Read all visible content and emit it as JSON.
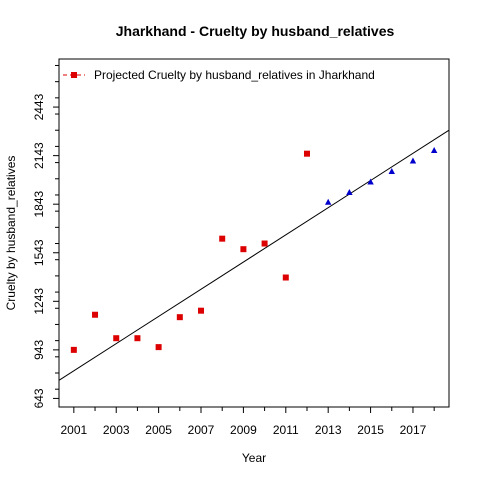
{
  "chart_data": {
    "type": "scatter",
    "title": "Jharkhand  -  Cruelty by husband_relatives",
    "xlabel": "Year",
    "ylabel": "Cruelty by husband_relatives",
    "xlim": [
      2000.3,
      2018.7
    ],
    "ylim": [
      590,
      2740
    ],
    "x_ticks": [
      2001,
      2003,
      2005,
      2007,
      2009,
      2011,
      2013,
      2015,
      2017
    ],
    "x_tick_labels": [
      "2001",
      "2003",
      "2005",
      "2007",
      "2009",
      "2011",
      "2013",
      "2015",
      "2017"
    ],
    "y_ticks": [
      643,
      943,
      1243,
      1543,
      1843,
      2143,
      2443
    ],
    "y_tick_labels": [
      "643",
      "943",
      "1243",
      "1543",
      "1843",
      "2143",
      "2443"
    ],
    "grid": false,
    "legend": {
      "placement": "top-left",
      "entries": [
        "Projected  Cruelty by husband_relatives  in  Jharkhand"
      ]
    },
    "series": [
      {
        "marker": "square",
        "color": "#dd0000",
        "x": [
          2001,
          2002,
          2003,
          2004,
          2005,
          2006,
          2007,
          2008,
          2009,
          2010,
          2011,
          2012
        ],
        "y": [
          943,
          1160,
          1015,
          1015,
          960,
          1145,
          1185,
          1630,
          1565,
          1600,
          1390,
          2155
        ]
      },
      {
        "marker": "triangle",
        "color": "#0000cc",
        "x": [
          2013,
          2014,
          2015,
          2016,
          2017,
          2018
        ],
        "y": [
          1855,
          1915,
          1980,
          2045,
          2110,
          2175
        ]
      }
    ],
    "trend_line": {
      "color": "#000000",
      "x": [
        2000.3,
        2018.7
      ],
      "y": [
        755,
        2300
      ]
    }
  }
}
